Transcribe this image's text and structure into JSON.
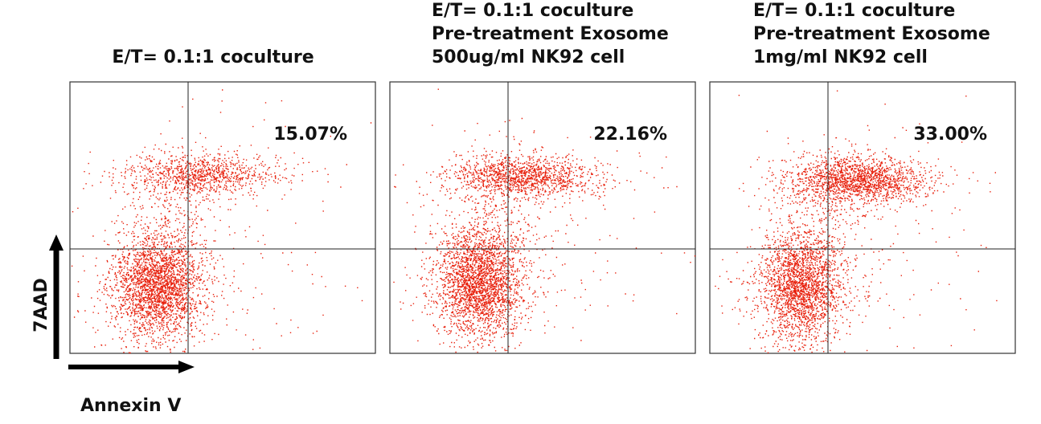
{
  "panels": [
    {
      "title_lines": [
        "E/T= 0.1:1 coculture"
      ],
      "percentage": "15.07%"
    },
    {
      "title_lines": [
        "E/T= 0.1:1 coculture",
        "Pre-treatment Exosome",
        "500ug/ml NK92 cell"
      ],
      "percentage": "22.16%"
    },
    {
      "title_lines": [
        "E/T= 0.1:1 coculture",
        "Pre-treatment Exosome",
        "1mg/ml NK92 cell"
      ],
      "percentage": "33.00%"
    }
  ],
  "y_axis_label": "7AAD",
  "x_axis_label": "Annexin V"
}
